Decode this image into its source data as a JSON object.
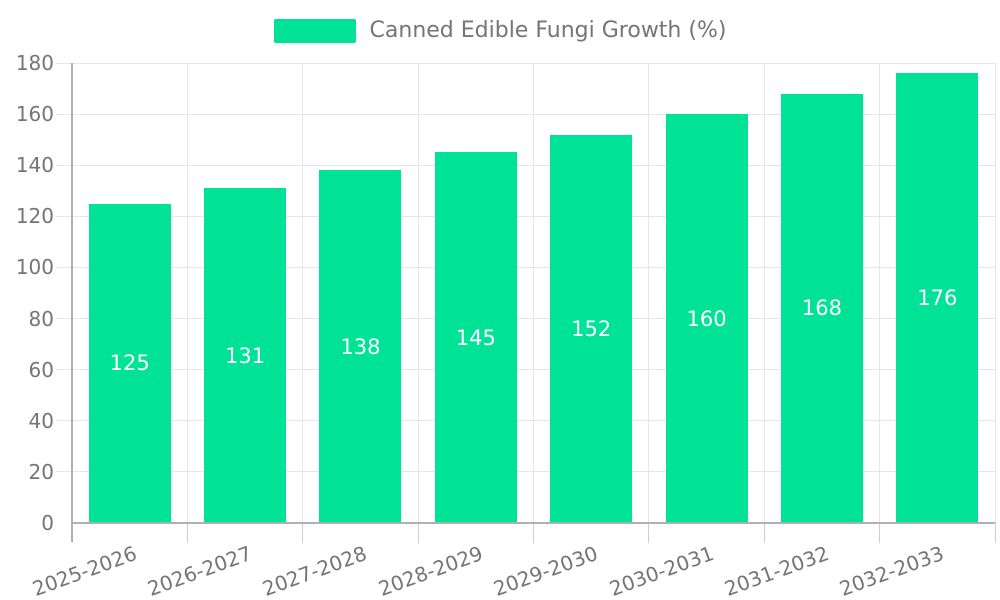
{
  "legend": {
    "label": "Canned Edible Fungi Growth (%)",
    "swatch_color": "#00E396"
  },
  "chart_data": {
    "type": "bar",
    "title": "Canned Edible Fungi Growth (%)",
    "series_name": "Canned Edible Fungi Growth (%)",
    "categories": [
      "2025-2026",
      "2026-2027",
      "2027-2028",
      "2028-2029",
      "2029-2030",
      "2030-2031",
      "2031-2032",
      "2032-2033"
    ],
    "values": [
      125,
      131,
      138,
      145,
      152,
      160,
      168,
      176
    ],
    "data_labels": [
      "125",
      "131",
      "138",
      "145",
      "152",
      "160",
      "168",
      "176"
    ],
    "xlabel": "",
    "ylabel": "",
    "ylim": [
      0,
      180
    ],
    "yticks": [
      0,
      20,
      40,
      60,
      80,
      100,
      120,
      140,
      160,
      180
    ],
    "grid": true,
    "legend_position": "top",
    "bar_color": "#00E396",
    "data_label_color": "#ffffff",
    "axis_text_color": "#757575",
    "grid_color": "#e6e6e6",
    "axis_line_color": "#b0b0b0"
  }
}
